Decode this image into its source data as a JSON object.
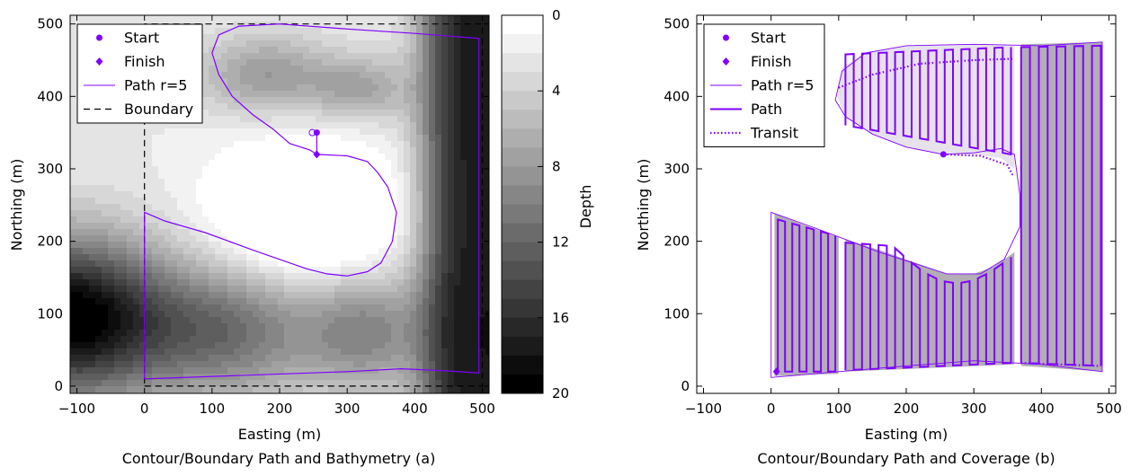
{
  "colors": {
    "path": "#7f00ff",
    "boundary": "#000000",
    "coverage_light": "#e6e1ea",
    "coverage_dark": "#b3adb6"
  },
  "chart_data": [
    {
      "id": "a",
      "type": "contour",
      "caption": "Contour/Boundary Path and Bathymetry (a)",
      "xlabel": "Easting (m)",
      "ylabel": "Northing (m)",
      "xlim": [
        -110,
        510
      ],
      "ylim": [
        -10,
        512
      ],
      "xticks": [
        -100,
        0,
        100,
        200,
        300,
        400,
        500
      ],
      "yticks": [
        0,
        100,
        200,
        300,
        400,
        500
      ],
      "colorbar": {
        "label": "Depth",
        "range": [
          0,
          20
        ],
        "ticks": [
          0,
          4,
          8,
          12,
          16,
          20
        ],
        "levels": 20,
        "colormap": "gray, light (shallow) to dark (deep)"
      },
      "legend": {
        "position": "top-left",
        "entries": [
          {
            "label": "Start",
            "marker": "circle"
          },
          {
            "label": "Finish",
            "marker": "diamond"
          },
          {
            "label": "Path r=5",
            "style": "thin-line"
          },
          {
            "label": "Boundary",
            "style": "dashed"
          }
        ]
      },
      "boundary": [
        [
          0,
          0
        ],
        [
          500,
          0
        ],
        [
          500,
          500
        ],
        [
          0,
          500
        ],
        [
          0,
          0
        ]
      ],
      "start": [
        255,
        350
      ],
      "finish": [
        255,
        320
      ],
      "path": [
        [
          255,
          320
        ],
        [
          300,
          318
        ],
        [
          330,
          310
        ],
        [
          345,
          295
        ],
        [
          360,
          275
        ],
        [
          373,
          240
        ],
        [
          367,
          200
        ],
        [
          350,
          170
        ],
        [
          330,
          158
        ],
        [
          300,
          152
        ],
        [
          270,
          155
        ],
        [
          240,
          162
        ],
        [
          160,
          188
        ],
        [
          90,
          212
        ],
        [
          30,
          228
        ],
        [
          0,
          240
        ],
        [
          0,
          10
        ],
        [
          150,
          15
        ],
        [
          300,
          20
        ],
        [
          380,
          24
        ],
        [
          450,
          21
        ],
        [
          495,
          18
        ],
        [
          495,
          480
        ],
        [
          400,
          487
        ],
        [
          300,
          493
        ],
        [
          200,
          500
        ],
        [
          140,
          497
        ],
        [
          110,
          485
        ],
        [
          100,
          460
        ],
        [
          110,
          430
        ],
        [
          130,
          400
        ],
        [
          160,
          375
        ],
        [
          190,
          355
        ],
        [
          215,
          335
        ],
        [
          245,
          326
        ],
        [
          255,
          320
        ]
      ]
    },
    {
      "id": "b",
      "type": "line",
      "caption": "Contour/Boundary Path and Coverage (b)",
      "xlabel": "Easting (m)",
      "ylabel": "Northing (m)",
      "xlim": [
        -110,
        510
      ],
      "ylim": [
        -10,
        512
      ],
      "xticks": [
        -100,
        0,
        100,
        200,
        300,
        400,
        500
      ],
      "yticks": [
        0,
        100,
        200,
        300,
        400,
        500
      ],
      "legend": {
        "position": "top-left",
        "entries": [
          {
            "label": "Start",
            "marker": "circle"
          },
          {
            "label": "Finish",
            "marker": "diamond"
          },
          {
            "label": "Path r=5",
            "style": "thin-line"
          },
          {
            "label": "Path",
            "style": "thick-line"
          },
          {
            "label": "Transit",
            "style": "dotted"
          }
        ]
      },
      "start": [
        255,
        320
      ],
      "finish": [
        8,
        20
      ],
      "outline": [
        [
          360,
          320
        ],
        [
          340,
          328
        ],
        [
          300,
          322
        ],
        [
          255,
          320
        ],
        [
          200,
          330
        ],
        [
          150,
          348
        ],
        [
          110,
          372
        ],
        [
          95,
          395
        ],
        [
          105,
          435
        ],
        [
          140,
          460
        ],
        [
          200,
          470
        ],
        [
          300,
          472
        ],
        [
          400,
          470
        ],
        [
          490,
          475
        ],
        [
          490,
          20
        ],
        [
          400,
          30
        ],
        [
          300,
          35
        ],
        [
          200,
          28
        ],
        [
          100,
          20
        ],
        [
          0,
          12
        ],
        [
          0,
          240
        ],
        [
          60,
          220
        ],
        [
          160,
          185
        ],
        [
          260,
          155
        ],
        [
          310,
          155
        ],
        [
          345,
          175
        ],
        [
          368,
          220
        ],
        [
          368,
          265
        ],
        [
          360,
          320
        ]
      ],
      "coverage_regions": [
        {
          "shade": "dark",
          "polygon": [
            [
              5,
              14
            ],
            [
              100,
              17
            ],
            [
              100,
              205
            ],
            [
              5,
              238
            ]
          ]
        },
        {
          "shade": "dark",
          "polygon": [
            [
              110,
              20
            ],
            [
              360,
              30
            ],
            [
              360,
              185
            ],
            [
              330,
              165
            ],
            [
              300,
              155
            ],
            [
              260,
              155
            ],
            [
              160,
              188
            ],
            [
              110,
              203
            ]
          ]
        },
        {
          "shade": "light",
          "polygon": [
            [
              105,
              440
            ],
            [
              140,
              460
            ],
            [
              200,
              470
            ],
            [
              300,
              472
            ],
            [
              360,
              470
            ],
            [
              360,
              300
            ],
            [
              340,
              315
            ],
            [
              300,
              320
            ],
            [
              255,
              320
            ],
            [
              200,
              330
            ],
            [
              150,
              348
            ],
            [
              110,
              372
            ],
            [
              98,
              400
            ]
          ]
        },
        {
          "shade": "dark",
          "polygon": [
            [
              370,
              28
            ],
            [
              490,
              20
            ],
            [
              490,
              475
            ],
            [
              370,
              472
            ]
          ]
        }
      ],
      "sweeps": [
        {
          "x0": 10,
          "x1": 95,
          "y_bottom": [
            20,
            20
          ],
          "y_top": [
            230,
            208
          ],
          "lanes": 9
        },
        {
          "x0": 110,
          "x1": 355,
          "y_bottom": [
            22,
            32
          ],
          "y_top": [
            198,
            182
          ],
          "lanes": 21,
          "curve_dip": true
        },
        {
          "x0": 110,
          "x1": 355,
          "y_bottom": [
            360,
            320
          ],
          "y_top": [
            458,
            468
          ],
          "lanes": 21,
          "upper": true
        },
        {
          "x0": 370,
          "x1": 488,
          "y_bottom": [
            32,
            28
          ],
          "y_top": [
            468,
            470
          ],
          "lanes": 10
        }
      ],
      "transits": [
        [
          [
            255,
            320
          ],
          [
            310,
            318
          ],
          [
            350,
            305
          ],
          [
            358,
            290
          ]
        ],
        [
          [
            100,
            412
          ],
          [
            150,
            430
          ],
          [
            220,
            445
          ],
          [
            300,
            450
          ],
          [
            360,
            452
          ]
        ],
        [
          [
            370,
            32
          ],
          [
            420,
            30
          ],
          [
            488,
            28
          ]
        ]
      ]
    }
  ]
}
